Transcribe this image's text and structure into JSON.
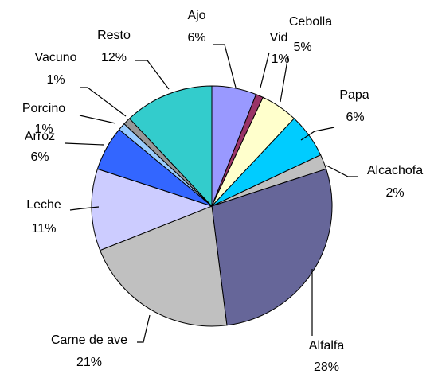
{
  "chart_data": {
    "type": "pie",
    "categories": [
      "Ajo",
      "Vid",
      "Cebolla",
      "Papa",
      "Alcachofa",
      "Alfalfa",
      "Carne de ave",
      "Leche",
      "Arroz",
      "Porcino",
      "Vacuno",
      "Resto"
    ],
    "values": [
      6,
      1,
      5,
      6,
      2,
      28,
      21,
      11,
      6,
      1,
      1,
      12
    ],
    "value_labels": [
      "6%",
      "1%",
      "5%",
      "6%",
      "2%",
      "28%",
      "21%",
      "11%",
      "6%",
      "1%",
      "1%",
      "12%"
    ],
    "colors": [
      "#9999ff",
      "#993366",
      "#ffffcc",
      "#00ccff",
      "#c0c0c0",
      "#666699",
      "#c0c0c0",
      "#ccccff",
      "#3366ff",
      "#99ccff",
      "#969696",
      "#33cccc"
    ]
  }
}
